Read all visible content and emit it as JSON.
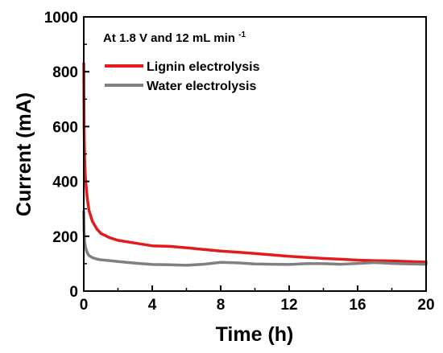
{
  "chart_data": {
    "type": "line",
    "xlabel": "Time (h)",
    "ylabel": "Current (mA)",
    "xlim": [
      0,
      20
    ],
    "ylim": [
      0,
      1000
    ],
    "xticks": [
      0,
      4,
      8,
      12,
      16,
      20
    ],
    "yticks": [
      0,
      200,
      400,
      600,
      800,
      1000
    ],
    "grid": false,
    "legend_position": "top-left",
    "annotation": {
      "text": "At 1.8 V and 12 mL min",
      "superscript": "-1"
    },
    "series": [
      {
        "name": "Lignin electrolysis",
        "color": "#e41a1c",
        "x": [
          0,
          0.02,
          0.05,
          0.1,
          0.2,
          0.3,
          0.5,
          0.75,
          1.0,
          1.5,
          2,
          3,
          4,
          5,
          6,
          7,
          8,
          9,
          10,
          11,
          12,
          13,
          14,
          15,
          16,
          17,
          18,
          19,
          20
        ],
        "y": [
          830,
          600,
          480,
          410,
          340,
          295,
          255,
          228,
          210,
          195,
          185,
          175,
          165,
          163,
          158,
          152,
          146,
          142,
          137,
          132,
          127,
          123,
          119,
          116,
          113,
          111,
          110,
          108,
          106
        ]
      },
      {
        "name": "Water electrolysis",
        "color": "#808080",
        "x": [
          0,
          0.02,
          0.05,
          0.1,
          0.2,
          0.3,
          0.5,
          0.75,
          1.0,
          1.5,
          2,
          3,
          4,
          5,
          6,
          7,
          8,
          9,
          10,
          11,
          12,
          13,
          14,
          15,
          16,
          17,
          18,
          19,
          20
        ],
        "y": [
          290,
          220,
          180,
          160,
          140,
          130,
          122,
          117,
          114,
          111,
          108,
          102,
          97,
          96,
          94,
          98,
          105,
          103,
          99,
          98,
          97,
          100,
          100,
          98,
          101,
          104,
          101,
          99,
          98
        ]
      }
    ]
  }
}
